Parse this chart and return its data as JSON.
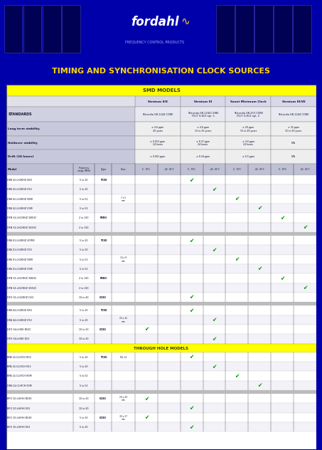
{
  "title": "TIMING AND SYNCHRONISATION CLOCK SOURCES",
  "title_color": "#FFD700",
  "table_header_text": "SMD MODELS",
  "col_headers": [
    "Stratum II/E",
    "Stratum III",
    "Sonet Minimum Clock",
    "Stratum III/VE"
  ],
  "standards": [
    "Telcordia GR-1244 CORE",
    "Telcordia GR-1244 CORE\nITU-T G.813 opt. 1",
    "Telcordia GR-253 CORE\nITU-T G.813 opt. 2",
    "Telcordia GR-1244 CORE"
  ],
  "row_specs": [
    {
      "label": "Long term stability",
      "values": [
        "± 4.6 ppm\n20 years",
        "± 4.6 ppm\n15 to 20 years",
        "± 20 ppm\n15 to 20 years",
        "± 32 ppm\n15 to 20 years"
      ]
    },
    {
      "label": "Holdover stability",
      "values": [
        "± 0.012 ppm\n24 hours",
        "± 8.37 ppm\n24 hours",
        "± 4.6 ppm\n24 hours",
        "N/A"
      ]
    },
    {
      "label": "Drift (24 hours)",
      "values": [
        "± 0.001 ppm",
        "± 8.34 ppm",
        "± 0.5 ppm",
        "N/A"
      ]
    }
  ],
  "temp_cols": [
    "0 - 70°C",
    "-40 - 85°C",
    "0 - 70°C",
    "-40 - 85°C",
    "0 - 70°C",
    "-40 - 85°C",
    "0 - 70°C",
    "-40 - 85°C"
  ],
  "models_smd": [
    {
      "model": "DFA S2-LH2KHZ B53",
      "freq": "5 to 20",
      "type": "TCXO",
      "size": "",
      "checks": [
        0,
        0,
        1,
        0,
        0,
        0,
        0,
        0
      ]
    },
    {
      "model": "DFA S2-LH2KHZ E53",
      "freq": "5 to 20",
      "type": "",
      "size": "",
      "checks": [
        0,
        0,
        0,
        1,
        0,
        0,
        0,
        0
      ]
    },
    {
      "model": "DFA S2-LH2KHZ B5M",
      "freq": "5 to 52",
      "type": "",
      "size": "7 x 5\nmm",
      "checks": [
        0,
        0,
        0,
        0,
        1,
        0,
        0,
        0
      ]
    },
    {
      "model": "DFA S2-LH2KHZ E5M",
      "freq": "5 to 52",
      "type": "",
      "size": "",
      "checks": [
        0,
        0,
        0,
        0,
        0,
        1,
        0,
        0
      ]
    },
    {
      "model": "DFN S2-LH2/KHZ XB53C",
      "freq": "2 to 130",
      "type": "PXRO",
      "size": "",
      "checks": [
        0,
        0,
        0,
        0,
        0,
        0,
        1,
        0
      ]
    },
    {
      "model": "DFN S2-LH2/KHZ XE53C",
      "freq": "2 to 130",
      "type": "",
      "size": "",
      "checks": [
        0,
        0,
        0,
        0,
        0,
        0,
        0,
        1
      ]
    },
    {
      "model": "DFA S1-LH2KHZ 40/M1",
      "freq": "5 to 20",
      "type": "TCXO",
      "size": "",
      "checks": [
        0,
        0,
        1,
        0,
        0,
        0,
        0,
        0
      ]
    },
    {
      "model": "DFA S1-LH2KHZ E53",
      "freq": "5 to 20",
      "type": "",
      "size": "",
      "checks": [
        0,
        0,
        0,
        1,
        0,
        0,
        0,
        0
      ]
    },
    {
      "model": "DFA S1-LH2KHZ B5M",
      "freq": "5 to 52",
      "type": "",
      "size": "14 x 9\nmm",
      "checks": [
        0,
        0,
        0,
        0,
        1,
        0,
        0,
        0
      ]
    },
    {
      "model": "DFA S1-LH2KHZ E5M",
      "freq": "5 to 52",
      "type": "",
      "size": "",
      "checks": [
        0,
        0,
        0,
        0,
        0,
        1,
        0,
        0
      ]
    },
    {
      "model": "DFN S1-LH2/KHZ XB53C",
      "freq": "2 to 130",
      "type": "PXRO",
      "size": "",
      "checks": [
        0,
        0,
        0,
        0,
        0,
        0,
        1,
        0
      ]
    },
    {
      "model": "DFN S1-LH2/KHZ XE53C",
      "freq": "2 to 130",
      "type": "",
      "size": "",
      "checks": [
        0,
        0,
        0,
        0,
        0,
        0,
        0,
        1
      ]
    },
    {
      "model": "DFO S1-LH2/KHZ D23",
      "freq": "10 to 40",
      "type": "OCXO",
      "size": "",
      "checks": [
        0,
        0,
        1,
        0,
        0,
        0,
        0,
        0
      ]
    },
    {
      "model": "DFA S4-LH2KHZ B53",
      "freq": "5 to 20",
      "type": "TCXO",
      "size": "",
      "checks": [
        0,
        0,
        1,
        0,
        0,
        0,
        0,
        0
      ]
    },
    {
      "model": "DFA S4-LH2KHZ E53",
      "freq": "5 to 20",
      "type": "",
      "size": "20 x 22\nmm",
      "checks": [
        0,
        0,
        0,
        1,
        0,
        0,
        0,
        0
      ]
    },
    {
      "model": "DFO S4-LHKH B53C",
      "freq": "10 to 20",
      "type": "OCXO",
      "size": "",
      "checks": [
        1,
        0,
        0,
        0,
        0,
        0,
        0,
        0
      ]
    },
    {
      "model": "DFO S4-LHKH E53",
      "freq": "10 to 20",
      "type": "",
      "size": "",
      "checks": [
        0,
        0,
        0,
        1,
        0,
        0,
        0,
        0
      ]
    }
  ],
  "through_hole_label": "THROUGH HOLE MODELS",
  "models_th": [
    {
      "model": "BPA 14-CL/HCH B53",
      "freq": "5 to 20",
      "type": "TCXO",
      "size": "DIL 14",
      "checks": [
        0,
        0,
        1,
        0,
        0,
        0,
        0,
        0
      ]
    },
    {
      "model": "BPA 14-CL/HCH E53",
      "freq": "5 to 20",
      "type": "",
      "size": "",
      "checks": [
        0,
        0,
        0,
        1,
        0,
        0,
        0,
        0
      ]
    },
    {
      "model": "BPA 14-CL/HCH B5M",
      "freq": "5 to 52",
      "type": "",
      "size": "",
      "checks": [
        0,
        0,
        0,
        0,
        1,
        0,
        0,
        0
      ]
    },
    {
      "model": "DFA 14-CL/HCH E5M",
      "freq": "5 to 52",
      "type": "",
      "size": "",
      "checks": [
        0,
        0,
        0,
        0,
        0,
        1,
        0,
        0
      ]
    },
    {
      "model": "BFO 20-LH/HH B53E",
      "freq": "10 to 20",
      "type": "OCXO",
      "size": "20 x 20\nmm",
      "checks": [
        1,
        0,
        0,
        0,
        0,
        0,
        0,
        0
      ]
    },
    {
      "model": "BFO 20-LH/HH E53",
      "freq": "10 to 20",
      "type": "",
      "size": "",
      "checks": [
        0,
        0,
        1,
        0,
        0,
        0,
        0,
        0
      ]
    },
    {
      "model": "BFO 30-LH/HH B53E",
      "freq": "5 to 20",
      "type": "OCXO",
      "size": "30 x 27\nmm",
      "checks": [
        1,
        0,
        0,
        0,
        0,
        0,
        0,
        0
      ]
    },
    {
      "model": "BFO 30-LH/HH E53",
      "freq": "5 to 20",
      "type": "",
      "size": "",
      "checks": [
        0,
        0,
        1,
        0,
        0,
        0,
        0,
        0
      ]
    }
  ]
}
